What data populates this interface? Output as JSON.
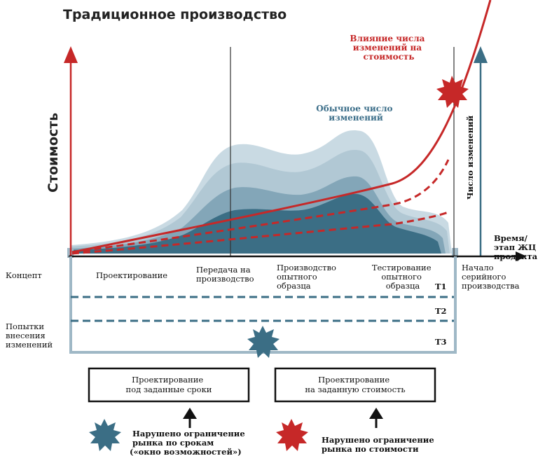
{
  "title": "Традиционное производство",
  "axes": {
    "y_left": "Стоимость",
    "y_right": "Число изменений",
    "x": [
      "Время/",
      "этап ЖЦ",
      "продукта"
    ]
  },
  "annotations": {
    "cost_impact": [
      "Влияние числа",
      "изменений на",
      "стоимость"
    ],
    "normal_changes": [
      "Обычное число",
      "изменений"
    ]
  },
  "phases": {
    "design": "Проектирование",
    "transfer": [
      "Передача на",
      "производство"
    ],
    "prototype": [
      "Производство",
      "опытного",
      "образца"
    ],
    "testing": [
      "Тестирование",
      "опытного",
      "образца"
    ],
    "serial": [
      "Начало",
      "серийного",
      "производства"
    ]
  },
  "left_labels": {
    "concept": "Концепт",
    "attempts": [
      "Попытки",
      "внесения",
      "изменений"
    ]
  },
  "bands": {
    "t1": "T1",
    "t2": "T2",
    "t3": "T3"
  },
  "boxes": {
    "deadline": [
      "Проектирование",
      "под заданные сроки"
    ],
    "cost": [
      "Проектирование",
      "на заданную стоимость"
    ]
  },
  "legend": {
    "market_deadline": [
      "Нарушено ограничение",
      "рынка по срокам",
      "(«окно возможностей»)"
    ],
    "market_cost": [
      "Нарушено ограничение",
      "рынка по стоимости"
    ]
  },
  "colors": {
    "red": "#c62828",
    "teal_dark": "#3b6e85",
    "teal_mid": "#7fa3b5",
    "teal_light": "#b8ced9",
    "teal_lighter": "#d3e1e8",
    "band": "#3b6e85",
    "frame": "#9fb8c6"
  }
}
